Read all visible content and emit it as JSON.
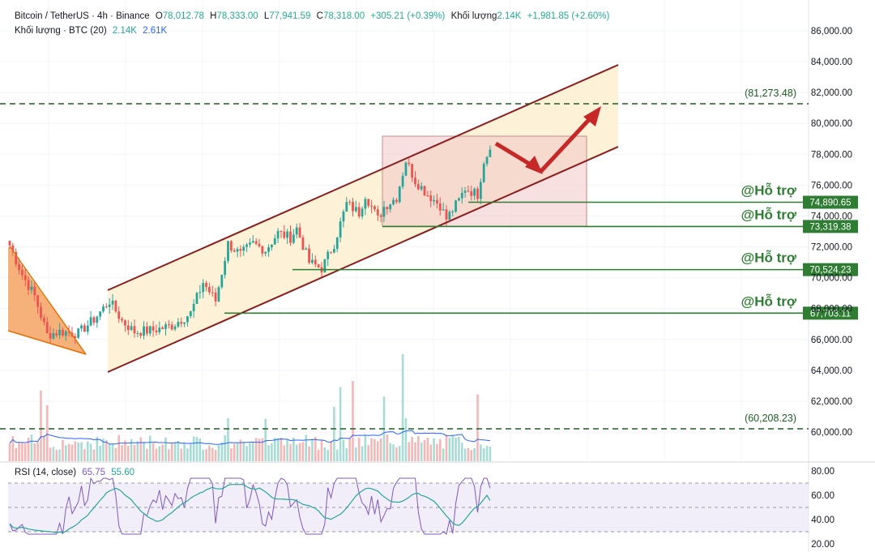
{
  "header": {
    "symbol": "Bitcoin / TetherUS · 4h · Binance",
    "open_label": "O",
    "open": "78,012.78",
    "high_label": "H",
    "high": "78,333.00",
    "low_label": "L",
    "low": "77,941.59",
    "close_label": "C",
    "close": "78,318.00",
    "change": "+305.21 (+0.39%)",
    "volume_label": "Khối lượng",
    "volume": "2.14K",
    "volume_change": "+1,981.85 (+2.60%)"
  },
  "volume_legend": {
    "label": "Khối lượng · BTC (20)",
    "value": "2.14K",
    "ma": "2.61K"
  },
  "rsi_legend": {
    "label": "RSI (14, close)",
    "rsi": "65.75",
    "ma": "55.60"
  },
  "colors": {
    "up": "#26a69a",
    "down": "#ef5350",
    "channel_fill": "#fdf0d0",
    "channel_line": "#8b1c1c",
    "support_line": "#2e7d32",
    "support_label_bg": "#2e7d32",
    "wedge_fill": "#f4a261",
    "box_fill": "#f2c6c6",
    "arrow": "#c62828",
    "rsi_band": "#ede7f6",
    "rsi_line": "#7e57c2",
    "rsi_ma": "#26a69a"
  },
  "chart_data": {
    "type": "candlestick",
    "timeframe": "4h",
    "y_axis": {
      "ticks": [
        "86,000.00",
        "84,000.00",
        "82,000.00",
        "80,000.00",
        "78,000.00",
        "76,000.00",
        "74,000.00",
        "72,000.00",
        "70,000.00",
        "68,000.00",
        "66,000.00",
        "64,000.00",
        "62,000.00",
        "60,000.00"
      ],
      "ylim": [
        59200,
        87200
      ]
    },
    "support_levels": [
      {
        "label": "@Hỗ trợ",
        "value": 74890.65,
        "value_text": "74,890.65"
      },
      {
        "label": "@Hỗ trợ",
        "value": 73319.38,
        "value_text": "73,319.38"
      },
      {
        "label": "@Hỗ trợ",
        "value": 70524.23,
        "value_text": "70,524.23"
      },
      {
        "label": "@Hỗ trợ",
        "value": 67703.11,
        "value_text": "67,703.11"
      }
    ],
    "target_levels": [
      {
        "value": 81273.48,
        "value_text": "(81,273.48)"
      },
      {
        "value": 60208.23,
        "value_text": "(60,208.23)"
      }
    ],
    "rsi_axis": {
      "ticks": [
        "80.00",
        "60.00",
        "40.00",
        "20.00"
      ],
      "ylim": [
        15,
        85
      ],
      "band": [
        30,
        70
      ]
    },
    "price_path": [
      {
        "i": 0,
        "p": 72100
      },
      {
        "i": 4,
        "p": 70200
      },
      {
        "i": 8,
        "p": 68800
      },
      {
        "i": 12,
        "p": 66300
      },
      {
        "i": 16,
        "p": 66500
      },
      {
        "i": 22,
        "p": 66400
      },
      {
        "i": 27,
        "p": 67300
      },
      {
        "i": 32,
        "p": 68500
      },
      {
        "i": 36,
        "p": 67200
      },
      {
        "i": 40,
        "p": 66500
      },
      {
        "i": 46,
        "p": 66600
      },
      {
        "i": 52,
        "p": 66900
      },
      {
        "i": 58,
        "p": 67700
      },
      {
        "i": 62,
        "p": 69700
      },
      {
        "i": 66,
        "p": 68500
      },
      {
        "i": 70,
        "p": 72200
      },
      {
        "i": 74,
        "p": 71500
      },
      {
        "i": 78,
        "p": 72200
      },
      {
        "i": 82,
        "p": 71800
      },
      {
        "i": 86,
        "p": 72900
      },
      {
        "i": 90,
        "p": 72600
      },
      {
        "i": 92,
        "p": 73200
      },
      {
        "i": 96,
        "p": 71000
      },
      {
        "i": 100,
        "p": 70600
      },
      {
        "i": 104,
        "p": 72200
      },
      {
        "i": 108,
        "p": 74800
      },
      {
        "i": 112,
        "p": 74200
      },
      {
        "i": 114,
        "p": 75400
      },
      {
        "i": 118,
        "p": 73800
      },
      {
        "i": 120,
        "p": 74600
      },
      {
        "i": 124,
        "p": 75200
      },
      {
        "i": 127,
        "p": 77600
      },
      {
        "i": 130,
        "p": 76300
      },
      {
        "i": 134,
        "p": 75400
      },
      {
        "i": 138,
        "p": 74700
      },
      {
        "i": 140,
        "p": 73800
      },
      {
        "i": 144,
        "p": 75000
      },
      {
        "i": 146,
        "p": 75800
      },
      {
        "i": 150,
        "p": 75400
      },
      {
        "i": 152,
        "p": 77600
      },
      {
        "i": 154,
        "p": 78300
      }
    ]
  }
}
